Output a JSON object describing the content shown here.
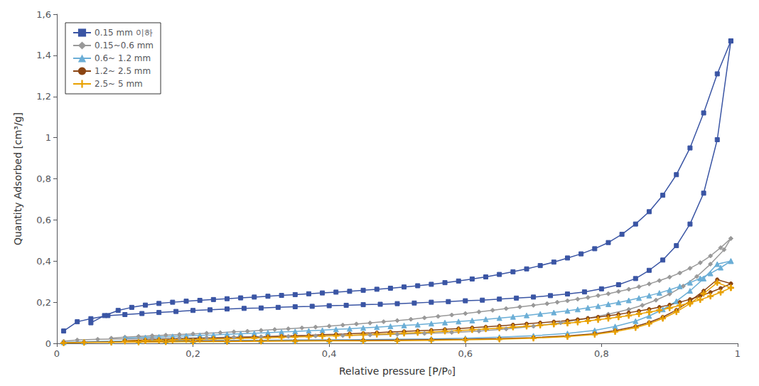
{
  "chart_data": {
    "type": "line",
    "xlabel": "Relative pressure [P/P₀]",
    "ylabel": "Quantity Adsorbed [cm³/g]",
    "xlim": [
      0,
      1.0
    ],
    "ylim": [
      0,
      1.6
    ],
    "xticks": [
      0,
      {
        "value": 0.2,
        "label": "0,2"
      },
      {
        "value": 0.4,
        "label": "0,4"
      },
      {
        "value": 0.6,
        "label": "0,6"
      },
      {
        "value": 0.8,
        "label": "0,8"
      },
      1
    ],
    "yticks": [
      0,
      {
        "value": 0.2,
        "label": "0,2"
      },
      {
        "value": 0.4,
        "label": "0,4"
      },
      {
        "value": 0.6,
        "label": "0,6"
      },
      {
        "value": 0.8,
        "label": "0,8"
      },
      1,
      {
        "value": 1.2,
        "label": "1,2"
      },
      {
        "value": 1.4,
        "label": "1,4"
      },
      {
        "value": 1.6,
        "label": "1,6"
      }
    ],
    "grid": false,
    "legend": "upper left",
    "series": [
      {
        "name": "0.15 mm 이하",
        "color": "#3A55A4",
        "marker": "square",
        "adsorption": {
          "x": [
            0.01,
            0.03,
            0.05,
            0.075,
            0.1,
            0.125,
            0.15,
            0.175,
            0.2,
            0.225,
            0.25,
            0.275,
            0.3,
            0.325,
            0.35,
            0.375,
            0.4,
            0.425,
            0.45,
            0.475,
            0.5,
            0.525,
            0.55,
            0.575,
            0.6,
            0.625,
            0.65,
            0.675,
            0.7,
            0.725,
            0.75,
            0.775,
            0.8,
            0.825,
            0.85,
            0.87,
            0.89,
            0.91,
            0.93,
            0.95,
            0.97,
            0.99
          ],
          "values": [
            0.06,
            0.105,
            0.12,
            0.135,
            0.14,
            0.145,
            0.15,
            0.155,
            0.16,
            0.163,
            0.167,
            0.17,
            0.172,
            0.175,
            0.178,
            0.18,
            0.183,
            0.185,
            0.188,
            0.19,
            0.193,
            0.196,
            0.2,
            0.203,
            0.207,
            0.21,
            0.215,
            0.22,
            0.225,
            0.232,
            0.24,
            0.25,
            0.265,
            0.285,
            0.315,
            0.355,
            0.405,
            0.475,
            0.58,
            0.73,
            0.99,
            1.47
          ]
        },
        "desorption": {
          "x": [
            0.99,
            0.97,
            0.95,
            0.93,
            0.91,
            0.89,
            0.87,
            0.85,
            0.83,
            0.81,
            0.79,
            0.77,
            0.75,
            0.73,
            0.71,
            0.69,
            0.67,
            0.65,
            0.63,
            0.61,
            0.59,
            0.57,
            0.55,
            0.53,
            0.51,
            0.49,
            0.47,
            0.45,
            0.43,
            0.41,
            0.39,
            0.37,
            0.35,
            0.33,
            0.31,
            0.29,
            0.27,
            0.25,
            0.23,
            0.21,
            0.19,
            0.17,
            0.15,
            0.13,
            0.11,
            0.09,
            0.07,
            0.05
          ],
          "values": [
            1.47,
            1.31,
            1.12,
            0.95,
            0.82,
            0.72,
            0.64,
            0.58,
            0.53,
            0.49,
            0.46,
            0.435,
            0.415,
            0.395,
            0.378,
            0.362,
            0.348,
            0.335,
            0.323,
            0.313,
            0.303,
            0.295,
            0.287,
            0.28,
            0.274,
            0.268,
            0.263,
            0.258,
            0.253,
            0.249,
            0.245,
            0.241,
            0.237,
            0.233,
            0.229,
            0.225,
            0.221,
            0.217,
            0.213,
            0.209,
            0.205,
            0.2,
            0.194,
            0.186,
            0.175,
            0.16,
            0.135,
            0.1
          ]
        }
      },
      {
        "name": "0.15~0.6 mm",
        "color": "#999999",
        "marker": "diamond",
        "adsorption": {
          "x": [
            0.01,
            0.03,
            0.06,
            0.1,
            0.14,
            0.18,
            0.22,
            0.26,
            0.3,
            0.34,
            0.38,
            0.42,
            0.46,
            0.5,
            0.54,
            0.58,
            0.62,
            0.66,
            0.7,
            0.74,
            0.78,
            0.81,
            0.84,
            0.86,
            0.88,
            0.9,
            0.92,
            0.94,
            0.96,
            0.98,
            0.99
          ],
          "values": [
            0.01,
            0.016,
            0.02,
            0.022,
            0.024,
            0.026,
            0.028,
            0.03,
            0.032,
            0.034,
            0.036,
            0.038,
            0.041,
            0.044,
            0.048,
            0.053,
            0.06,
            0.07,
            0.083,
            0.1,
            0.122,
            0.142,
            0.165,
            0.185,
            0.21,
            0.24,
            0.278,
            0.325,
            0.385,
            0.455,
            0.51
          ]
        },
        "desorption": {
          "x": [
            0.99,
            0.975,
            0.96,
            0.945,
            0.93,
            0.915,
            0.9,
            0.885,
            0.87,
            0.855,
            0.84,
            0.825,
            0.81,
            0.795,
            0.78,
            0.765,
            0.75,
            0.735,
            0.72,
            0.7,
            0.68,
            0.66,
            0.64,
            0.62,
            0.6,
            0.58,
            0.56,
            0.54,
            0.52,
            0.5,
            0.48,
            0.46,
            0.44,
            0.42,
            0.4,
            0.38,
            0.36,
            0.34,
            0.32,
            0.3,
            0.28,
            0.26,
            0.24,
            0.22,
            0.2,
            0.18,
            0.16,
            0.14,
            0.12,
            0.1,
            0.08
          ],
          "values": [
            0.51,
            0.465,
            0.425,
            0.392,
            0.365,
            0.342,
            0.322,
            0.305,
            0.289,
            0.275,
            0.263,
            0.252,
            0.241,
            0.232,
            0.223,
            0.215,
            0.207,
            0.2,
            0.193,
            0.185,
            0.177,
            0.169,
            0.161,
            0.153,
            0.145,
            0.138,
            0.131,
            0.124,
            0.117,
            0.111,
            0.105,
            0.099,
            0.094,
            0.089,
            0.084,
            0.079,
            0.075,
            0.071,
            0.067,
            0.063,
            0.059,
            0.056,
            0.052,
            0.049,
            0.046,
            0.043,
            0.04,
            0.037,
            0.034,
            0.03,
            0.025
          ]
        }
      },
      {
        "name": "0.6~ 1.2 mm",
        "color": "#6BAED6",
        "marker": "triangle",
        "adsorption": {
          "x": [
            0.01,
            0.04,
            0.08,
            0.12,
            0.16,
            0.2,
            0.25,
            0.3,
            0.35,
            0.4,
            0.45,
            0.5,
            0.55,
            0.6,
            0.65,
            0.7,
            0.75,
            0.79,
            0.82,
            0.85,
            0.87,
            0.89,
            0.91,
            0.93,
            0.95,
            0.97,
            0.99
          ],
          "values": [
            0.005,
            0.008,
            0.01,
            0.011,
            0.012,
            0.013,
            0.014,
            0.015,
            0.016,
            0.017,
            0.018,
            0.02,
            0.022,
            0.025,
            0.03,
            0.037,
            0.048,
            0.063,
            0.082,
            0.108,
            0.133,
            0.165,
            0.205,
            0.255,
            0.315,
            0.385,
            0.4
          ]
        },
        "desorption": {
          "x": [
            0.99,
            0.975,
            0.96,
            0.945,
            0.93,
            0.915,
            0.9,
            0.885,
            0.87,
            0.855,
            0.84,
            0.825,
            0.81,
            0.795,
            0.78,
            0.765,
            0.75,
            0.73,
            0.71,
            0.69,
            0.67,
            0.65,
            0.63,
            0.61,
            0.59,
            0.57,
            0.55,
            0.53,
            0.51,
            0.49,
            0.47,
            0.45,
            0.43,
            0.41,
            0.39,
            0.37,
            0.35,
            0.33,
            0.31,
            0.29,
            0.27,
            0.25,
            0.23,
            0.21,
            0.19,
            0.17,
            0.15,
            0.13,
            0.1
          ],
          "values": [
            0.4,
            0.368,
            0.34,
            0.316,
            0.295,
            0.277,
            0.26,
            0.245,
            0.232,
            0.22,
            0.209,
            0.199,
            0.19,
            0.181,
            0.173,
            0.165,
            0.158,
            0.15,
            0.143,
            0.136,
            0.129,
            0.123,
            0.117,
            0.111,
            0.106,
            0.101,
            0.096,
            0.091,
            0.087,
            0.083,
            0.079,
            0.075,
            0.071,
            0.068,
            0.064,
            0.061,
            0.058,
            0.055,
            0.052,
            0.049,
            0.047,
            0.044,
            0.041,
            0.039,
            0.037,
            0.034,
            0.032,
            0.029,
            0.025
          ]
        }
      },
      {
        "name": "1.2~ 2.5 mm",
        "color": "#8B4513",
        "marker": "circle",
        "adsorption": {
          "x": [
            0.01,
            0.04,
            0.08,
            0.12,
            0.16,
            0.2,
            0.25,
            0.3,
            0.35,
            0.4,
            0.45,
            0.5,
            0.55,
            0.6,
            0.65,
            0.7,
            0.75,
            0.79,
            0.82,
            0.85,
            0.87,
            0.89,
            0.91,
            0.93,
            0.95,
            0.97,
            0.99
          ],
          "values": [
            0.003,
            0.005,
            0.007,
            0.008,
            0.009,
            0.01,
            0.011,
            0.012,
            0.013,
            0.014,
            0.015,
            0.016,
            0.018,
            0.02,
            0.023,
            0.028,
            0.036,
            0.047,
            0.062,
            0.082,
            0.102,
            0.128,
            0.162,
            0.205,
            0.255,
            0.31,
            0.29
          ]
        },
        "desorption": {
          "x": [
            0.99,
            0.975,
            0.96,
            0.945,
            0.93,
            0.915,
            0.9,
            0.885,
            0.87,
            0.855,
            0.84,
            0.825,
            0.81,
            0.795,
            0.78,
            0.765,
            0.75,
            0.73,
            0.71,
            0.69,
            0.67,
            0.65,
            0.63,
            0.61,
            0.59,
            0.57,
            0.55,
            0.53,
            0.51,
            0.49,
            0.47,
            0.45,
            0.43,
            0.41,
            0.39,
            0.37,
            0.35,
            0.33,
            0.31,
            0.29,
            0.27,
            0.25,
            0.23,
            0.21,
            0.19,
            0.17,
            0.15,
            0.13,
            0.1
          ],
          "values": [
            0.29,
            0.268,
            0.248,
            0.23,
            0.214,
            0.2,
            0.187,
            0.176,
            0.166,
            0.157,
            0.149,
            0.141,
            0.134,
            0.128,
            0.122,
            0.116,
            0.111,
            0.105,
            0.1,
            0.095,
            0.09,
            0.085,
            0.08,
            0.076,
            0.072,
            0.068,
            0.064,
            0.061,
            0.058,
            0.055,
            0.052,
            0.049,
            0.047,
            0.044,
            0.042,
            0.039,
            0.037,
            0.035,
            0.033,
            0.031,
            0.029,
            0.027,
            0.025,
            0.024,
            0.022,
            0.02,
            0.018,
            0.016,
            0.013
          ]
        }
      },
      {
        "name": "2.5~ 5 mm",
        "color": "#E8A000",
        "marker": "plus",
        "adsorption": {
          "x": [
            0.01,
            0.04,
            0.08,
            0.12,
            0.16,
            0.2,
            0.25,
            0.3,
            0.35,
            0.4,
            0.45,
            0.5,
            0.55,
            0.6,
            0.65,
            0.7,
            0.75,
            0.79,
            0.82,
            0.85,
            0.87,
            0.89,
            0.91,
            0.93,
            0.95,
            0.97,
            0.99
          ],
          "values": [
            0.002,
            0.004,
            0.005,
            0.006,
            0.007,
            0.008,
            0.009,
            0.01,
            0.011,
            0.012,
            0.012,
            0.013,
            0.015,
            0.017,
            0.02,
            0.025,
            0.033,
            0.043,
            0.057,
            0.076,
            0.096,
            0.121,
            0.153,
            0.193,
            0.242,
            0.295,
            0.27
          ]
        },
        "desorption": {
          "x": [
            0.99,
            0.975,
            0.96,
            0.945,
            0.93,
            0.915,
            0.9,
            0.885,
            0.87,
            0.855,
            0.84,
            0.825,
            0.81,
            0.795,
            0.78,
            0.765,
            0.75,
            0.73,
            0.71,
            0.69,
            0.67,
            0.65,
            0.63,
            0.61,
            0.59,
            0.57,
            0.55,
            0.53,
            0.51,
            0.49,
            0.47,
            0.45,
            0.43,
            0.41,
            0.39,
            0.37,
            0.35,
            0.33,
            0.31,
            0.29,
            0.27,
            0.25,
            0.23,
            0.21,
            0.19,
            0.17,
            0.15,
            0.13,
            0.1
          ],
          "values": [
            0.27,
            0.248,
            0.229,
            0.212,
            0.197,
            0.184,
            0.172,
            0.161,
            0.152,
            0.143,
            0.135,
            0.128,
            0.121,
            0.115,
            0.109,
            0.103,
            0.098,
            0.093,
            0.088,
            0.083,
            0.079,
            0.074,
            0.07,
            0.066,
            0.062,
            0.059,
            0.055,
            0.052,
            0.049,
            0.047,
            0.044,
            0.042,
            0.039,
            0.037,
            0.035,
            0.033,
            0.031,
            0.029,
            0.027,
            0.026,
            0.024,
            0.022,
            0.021,
            0.019,
            0.018,
            0.016,
            0.015,
            0.013,
            0.01
          ]
        }
      }
    ]
  }
}
